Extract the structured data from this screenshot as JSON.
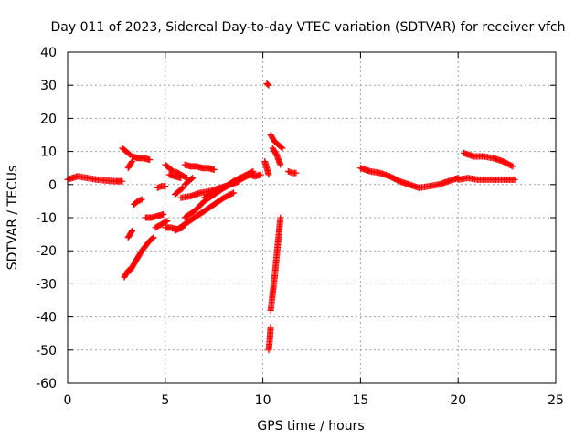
{
  "chart_data": {
    "type": "scatter",
    "title": "Day 011 of 2023, Sidereal Day-to-day VTEC variation (SDTVAR) for receiver vfch",
    "xlabel": "GPS time / hours",
    "ylabel": "SDTVAR / TECUs",
    "xlim": [
      0,
      25
    ],
    "ylim": [
      -60,
      40
    ],
    "x_ticks": [
      0,
      5,
      10,
      15,
      20,
      25
    ],
    "y_ticks": [
      40,
      30,
      20,
      10,
      0,
      -10,
      -20,
      -30,
      -40,
      -50,
      -60
    ],
    "grid": true,
    "marker": "+",
    "color": "#ff0000",
    "series": [
      {
        "name": "SDTVAR",
        "segments": [
          {
            "x": [
              0.0,
              0.5,
              1.0,
              1.5,
              2.0,
              2.5,
              2.8
            ],
            "y": [
              1.5,
              2.5,
              2.0,
              1.5,
              1.2,
              1.0,
              1.0
            ]
          },
          {
            "x": [
              2.9,
              3.0,
              3.1,
              3.3
            ],
            "y": [
              -28,
              -27,
              -26,
              -25
            ]
          },
          {
            "x": [
              3.2,
              3.4,
              3.6,
              3.8,
              4.0,
              4.2,
              4.4
            ],
            "y": [
              -26,
              -24,
              -22,
              -20,
              -18.5,
              -17,
              -16
            ]
          },
          {
            "x": [
              3.1,
              3.2,
              3.3
            ],
            "y": [
              -16,
              -15,
              -14
            ]
          },
          {
            "x": [
              2.8,
              3.0,
              3.2
            ],
            "y": [
              11,
              10,
              9
            ]
          },
          {
            "x": [
              3.1,
              3.2,
              3.3
            ],
            "y": [
              5,
              6,
              7
            ]
          },
          {
            "x": [
              3.3,
              3.6,
              3.9,
              4.2
            ],
            "y": [
              8.5,
              8,
              8,
              7.5
            ]
          },
          {
            "x": [
              3.4,
              3.6,
              3.8
            ],
            "y": [
              -6,
              -5,
              -4.5
            ]
          },
          {
            "x": [
              4.0,
              4.3,
              4.6,
              4.9
            ],
            "y": [
              -10,
              -10,
              -9.5,
              -9
            ]
          },
          {
            "x": [
              4.5,
              4.8,
              5.1
            ],
            "y": [
              -13,
              -12,
              -11
            ]
          },
          {
            "x": [
              4.6,
              4.8,
              5.0
            ],
            "y": [
              -1,
              -0.5,
              -0.5
            ]
          },
          {
            "x": [
              5.0,
              5.3,
              5.6,
              5.9
            ],
            "y": [
              -13,
              -13,
              -13.5,
              -13
            ]
          },
          {
            "x": [
              5.2,
              5.5,
              5.8
            ],
            "y": [
              3,
              2.5,
              2
            ]
          },
          {
            "x": [
              5.5,
              5.7,
              5.9
            ],
            "y": [
              -3,
              -2,
              -1
            ]
          },
          {
            "x": [
              6.0,
              6.2,
              6.4
            ],
            "y": [
              0,
              1,
              2
            ]
          },
          {
            "x": [
              5.0,
              5.2,
              5.4
            ],
            "y": [
              6,
              5,
              4
            ]
          },
          {
            "x": [
              5.5,
              5.8,
              6.1
            ],
            "y": [
              4,
              3,
              2
            ]
          },
          {
            "x": [
              6.0,
              6.3,
              6.6,
              6.9,
              7.2,
              7.5
            ],
            "y": [
              6,
              5.5,
              5.5,
              5,
              5,
              4.5
            ]
          },
          {
            "x": [
              5.5,
              6.0,
              6.5,
              7.0,
              7.5,
              8.0,
              8.5
            ],
            "y": [
              -14,
              -12,
              -10,
              -8,
              -6,
              -4,
              -2.5
            ]
          },
          {
            "x": [
              6.0,
              6.5,
              7.0,
              7.5,
              8.0,
              8.5,
              9.0,
              9.5
            ],
            "y": [
              -10,
              -8,
              -5,
              -3,
              -1,
              1,
              2.5,
              4
            ]
          },
          {
            "x": [
              5.8,
              6.3,
              6.8,
              7.3,
              7.8,
              8.3,
              8.8
            ],
            "y": [
              -4,
              -3.5,
              -2.5,
              -2,
              -1,
              0,
              1
            ]
          },
          {
            "x": [
              7.0,
              7.5,
              8.0,
              8.5,
              9.0,
              9.5
            ],
            "y": [
              -4,
              -2.5,
              -1,
              0.5,
              2,
              3.5
            ]
          },
          {
            "x": [
              9.3,
              9.6,
              9.9
            ],
            "y": [
              3,
              2.5,
              3
            ]
          },
          {
            "x": [
              10.2,
              10.3
            ],
            "y": [
              30.5,
              30
            ]
          },
          {
            "x": [
              10.3,
              10.35,
              10.4
            ],
            "y": [
              -50,
              -47,
              -43
            ]
          },
          {
            "x": [
              10.4,
              10.5,
              10.6,
              10.7,
              10.8,
              10.9
            ],
            "y": [
              -38,
              -33,
              -28,
              -22,
              -16,
              -10
            ]
          },
          {
            "x": [
              10.1,
              10.2,
              10.3
            ],
            "y": [
              7,
              5,
              3
            ]
          },
          {
            "x": [
              10.4,
              10.5,
              10.6,
              10.8,
              11.0
            ],
            "y": [
              15,
              14,
              13,
              12,
              11
            ]
          },
          {
            "x": [
              10.5,
              10.7,
              10.9
            ],
            "y": [
              11,
              9,
              6
            ]
          },
          {
            "x": [
              11.3,
              11.5,
              11.7
            ],
            "y": [
              4,
              3.5,
              3.5
            ]
          },
          {
            "x": [
              15.0,
              15.5,
              16.0,
              16.5,
              17.0,
              17.5,
              18.0,
              18.5,
              19.0,
              19.5,
              20.0
            ],
            "y": [
              5,
              4,
              3.5,
              2.5,
              1,
              0,
              -1,
              -0.5,
              0,
              1,
              2
            ]
          },
          {
            "x": [
              20.0,
              20.5,
              21.0,
              21.5,
              22.0,
              22.5,
              22.9
            ],
            "y": [
              1.5,
              2,
              1.5,
              1.5,
              1.5,
              1.5,
              1.5
            ]
          },
          {
            "x": [
              20.3,
              20.8,
              21.3,
              21.8,
              22.3,
              22.8
            ],
            "y": [
              9.5,
              8.5,
              8.5,
              8,
              7,
              5.5
            ]
          }
        ]
      }
    ]
  }
}
